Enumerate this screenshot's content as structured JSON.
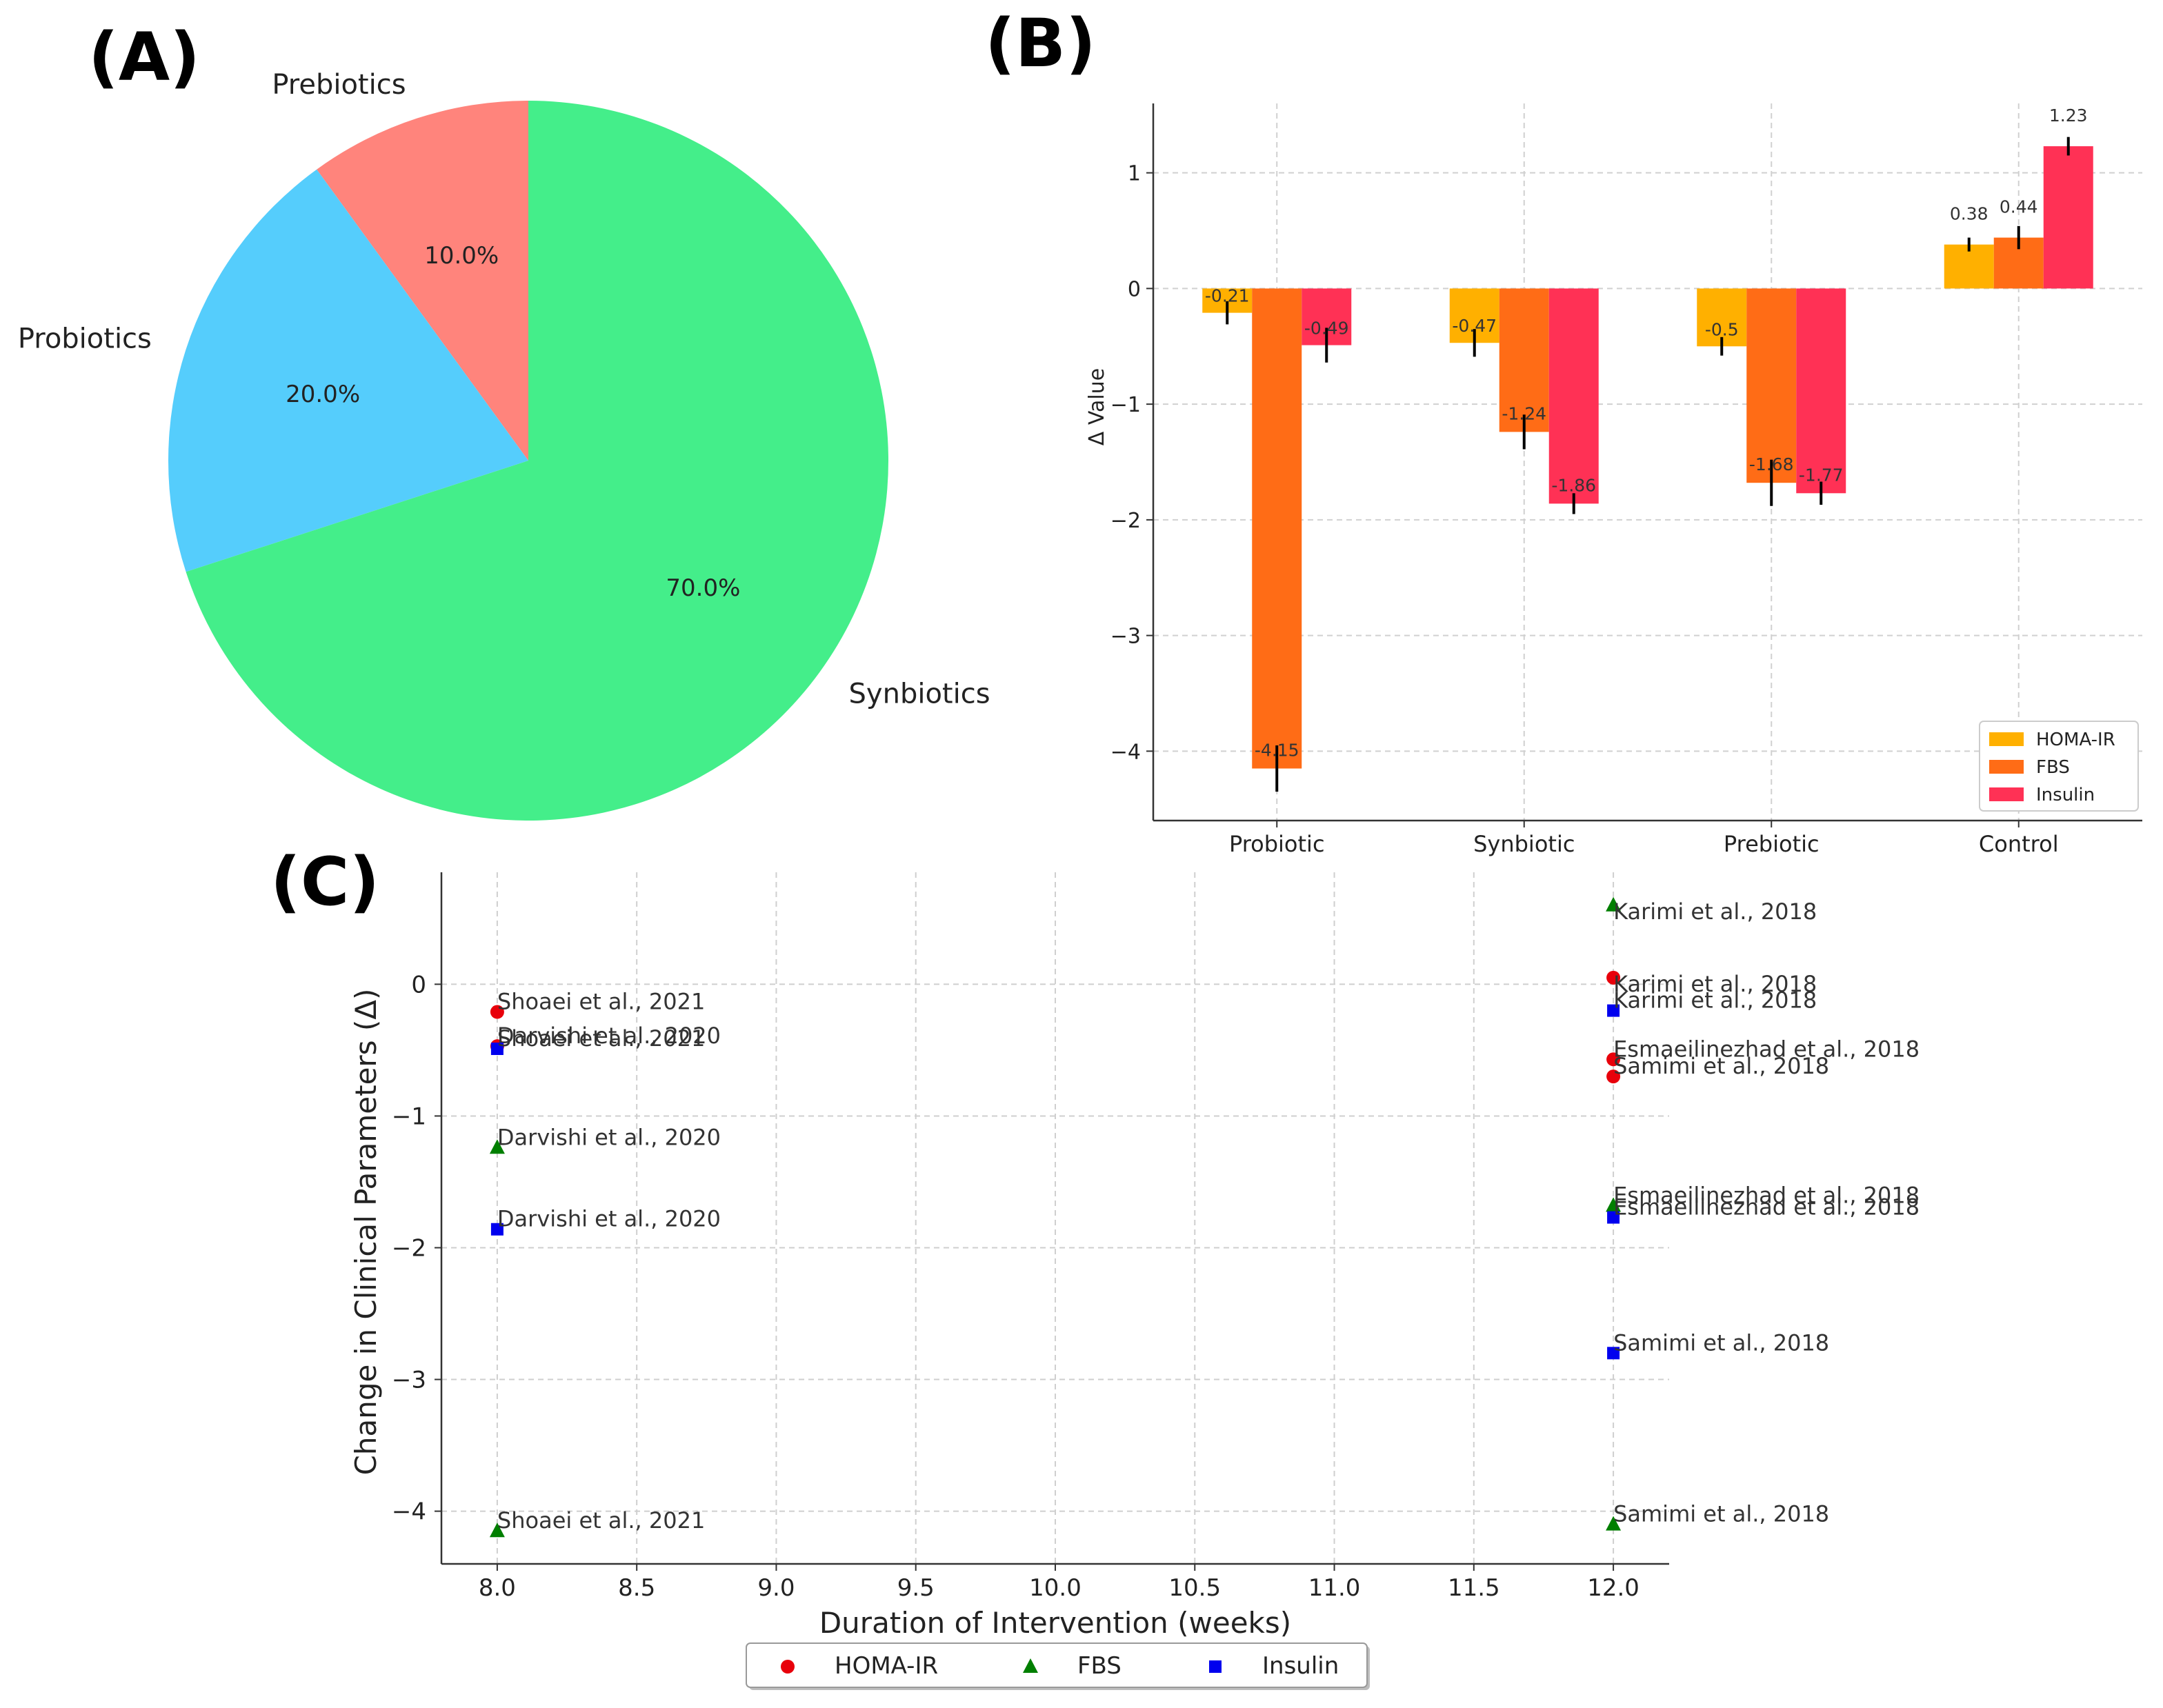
{
  "panels": {
    "a": "(A)",
    "b": "(B)",
    "c": "(C)"
  },
  "colors": {
    "pie": [
      "#ff847c",
      "#55cdfc",
      "#44ee8a"
    ],
    "homa": "#ffb000",
    "fbs": "#ff6c16",
    "insulin": "#ff3155",
    "scatter": {
      "HOMA-IR": "#e8000b",
      "FBS": "#007f00",
      "Insulin": "#0000ee"
    }
  },
  "chart_data": [
    {
      "id": "A",
      "type": "pie",
      "title": "",
      "labels": [
        "Prebiotics",
        "Probiotics",
        "Synbiotics"
      ],
      "values": [
        10.0,
        20.0,
        70.0
      ],
      "pct_labels": [
        "10.0%",
        "20.0%",
        "70.0%"
      ],
      "start_angle_deg": 90,
      "direction": "counterclockwise"
    },
    {
      "id": "B",
      "type": "bar",
      "title": "",
      "xlabel": "",
      "ylabel": "Δ Value",
      "categories": [
        "Probiotic",
        "Synbiotic",
        "Prebiotic",
        "Control"
      ],
      "series": [
        {
          "name": "HOMA-IR",
          "values": [
            -0.21,
            -0.47,
            -0.5,
            0.38
          ],
          "err": [
            0.1,
            0.12,
            0.08,
            0.06
          ],
          "labels": [
            "-0.21",
            "-0.47",
            "-0.5",
            "0.38"
          ]
        },
        {
          "name": "FBS",
          "values": [
            -4.15,
            -1.24,
            -1.68,
            0.44
          ],
          "err": [
            0.2,
            0.15,
            0.2,
            0.1
          ],
          "labels": [
            "-4.15",
            "-1.24",
            "-1.68",
            "0.44"
          ]
        },
        {
          "name": "Insulin",
          "values": [
            -0.49,
            -1.86,
            -1.77,
            1.23
          ],
          "err": [
            0.15,
            0.09,
            0.1,
            0.08
          ],
          "labels": [
            "-0.49",
            "-1.86",
            "-1.77",
            "1.23"
          ]
        }
      ],
      "ylim": [
        -4.6,
        1.6
      ],
      "yticks": [
        1,
        0,
        -1,
        -2,
        -3,
        -4
      ],
      "ytick_labels": [
        "1",
        "0",
        "−1",
        "−2",
        "−3",
        "−4"
      ],
      "grid": true,
      "legend_position": "bottom-right",
      "legend": [
        "HOMA-IR",
        "FBS",
        "Insulin"
      ]
    },
    {
      "id": "C",
      "type": "scatter",
      "title": "",
      "xlabel": "Duration of Intervention (weeks)",
      "ylabel": "Change in Clinical Parameters (Δ)",
      "xlim": [
        7.8,
        12.2
      ],
      "ylim": [
        -4.4,
        0.85
      ],
      "xticks": [
        8.0,
        8.5,
        9.0,
        9.5,
        10.0,
        10.5,
        11.0,
        11.5,
        12.0
      ],
      "xtick_labels": [
        "8.0",
        "8.5",
        "9.0",
        "9.5",
        "10.0",
        "10.5",
        "11.0",
        "11.5",
        "12.0"
      ],
      "yticks": [
        0,
        -1,
        -2,
        -3,
        -4
      ],
      "ytick_labels": [
        "0",
        "−1",
        "−2",
        "−3",
        "−4"
      ],
      "grid": true,
      "legend_position": "bottom-center",
      "legend": [
        "HOMA-IR",
        "FBS",
        "Insulin"
      ],
      "series": [
        {
          "name": "HOMA-IR",
          "marker": "circle",
          "points": [
            {
              "x": 8,
              "y": -0.21,
              "label": "Shoaei et al., 2021"
            },
            {
              "x": 8,
              "y": -0.47,
              "label": "Darvishi et al., 2020"
            },
            {
              "x": 12,
              "y": 0.05,
              "label": "Karimi et al., 2018"
            },
            {
              "x": 12,
              "y": -0.57,
              "label": "Esmaeilinezhad et al., 2018"
            },
            {
              "x": 12,
              "y": -0.7,
              "label": "Samimi et al., 2018"
            }
          ]
        },
        {
          "name": "FBS",
          "marker": "triangle",
          "points": [
            {
              "x": 8,
              "y": -4.15,
              "label": "Shoaei et al., 2021"
            },
            {
              "x": 8,
              "y": -1.24,
              "label": "Darvishi et al., 2020"
            },
            {
              "x": 12,
              "y": 0.6,
              "label": "Karimi et al., 2018"
            },
            {
              "x": 12,
              "y": -1.68,
              "label": "Esmaeilinezhad et al., 2018"
            },
            {
              "x": 12,
              "y": -4.1,
              "label": "Samimi et al., 2018"
            }
          ]
        },
        {
          "name": "Insulin",
          "marker": "square",
          "points": [
            {
              "x": 8,
              "y": -0.49,
              "label": "Shoaei et al., 2021"
            },
            {
              "x": 8,
              "y": -1.86,
              "label": "Darvishi et al., 2020"
            },
            {
              "x": 12,
              "y": -0.2,
              "label": "Karimi et al., 2018"
            },
            {
              "x": 12,
              "y": -1.77,
              "label": "Esmaeilinezhad et al., 2018"
            },
            {
              "x": 12,
              "y": -2.8,
              "label": "Samimi et al., 2018"
            }
          ]
        }
      ]
    }
  ]
}
